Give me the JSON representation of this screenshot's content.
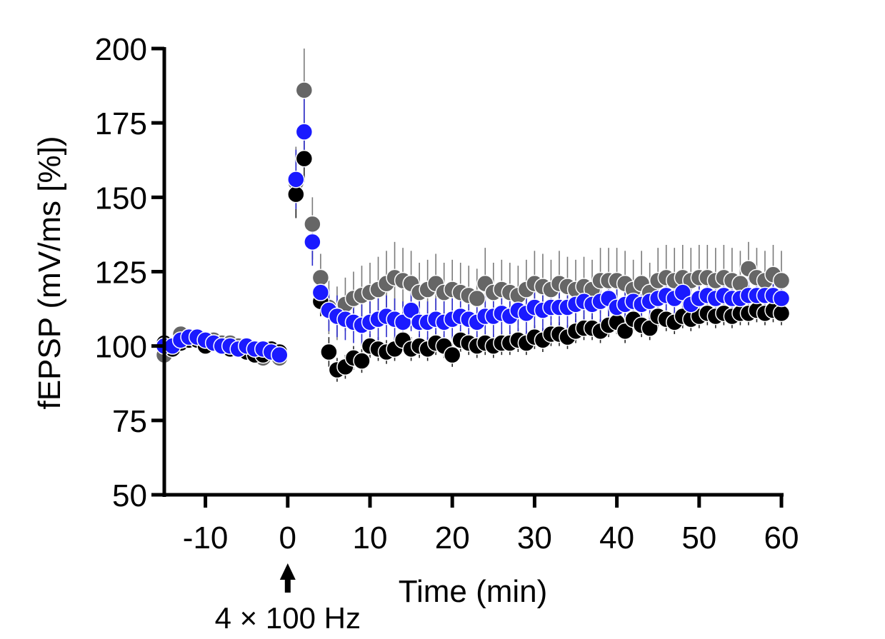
{
  "chart_data": {
    "type": "scatter",
    "title": "",
    "xlabel": "Time (min)",
    "ylabel": "fEPSP (mV/ms [%])",
    "xlim": [
      -15,
      60
    ],
    "ylim": [
      50,
      200
    ],
    "x_ticks": [
      -10,
      0,
      10,
      20,
      30,
      40,
      50,
      60
    ],
    "y_ticks": [
      50,
      75,
      100,
      125,
      150,
      175,
      200
    ],
    "x_tick_labels": [
      "-10",
      "0",
      "10",
      "20",
      "30",
      "40",
      "50",
      "60"
    ],
    "y_tick_labels": [
      "50",
      "75",
      "100",
      "125",
      "150",
      "175",
      "200"
    ],
    "annotation": "4 × 100 Hz",
    "annotation_x": 0,
    "grid": false,
    "legend": "none",
    "colors": {
      "gray": "#666666",
      "black": "#000000",
      "blue": "#1a1aff",
      "error_gray": "#7a7a7a",
      "error_blue": "#2a2acc"
    },
    "x": [
      -15,
      -14,
      -13,
      -12,
      -11,
      -10,
      -9,
      -8,
      -7,
      -6,
      -5,
      -4,
      -3,
      -2,
      -1,
      1,
      2,
      3,
      4,
      5,
      6,
      7,
      8,
      9,
      10,
      11,
      12,
      13,
      14,
      15,
      16,
      17,
      18,
      19,
      20,
      21,
      22,
      23,
      24,
      25,
      26,
      27,
      28,
      29,
      30,
      31,
      32,
      33,
      34,
      35,
      36,
      37,
      38,
      39,
      40,
      41,
      42,
      43,
      44,
      45,
      46,
      47,
      48,
      49,
      50,
      51,
      52,
      53,
      54,
      55,
      56,
      57,
      58,
      59,
      60
    ],
    "series": [
      {
        "color": "gray",
        "y": [
          97,
          100,
          104,
          103,
          102,
          101,
          102,
          101,
          101,
          100,
          100,
          99,
          96,
          98,
          96,
          155,
          186,
          141,
          123,
          113,
          111,
          114,
          116,
          117,
          118,
          119,
          121,
          123,
          122,
          121,
          118,
          119,
          121,
          118,
          119,
          118,
          117,
          116,
          121,
          118,
          119,
          118,
          117,
          119,
          121,
          120,
          119,
          121,
          120,
          119,
          120,
          119,
          122,
          122,
          122,
          121,
          119,
          121,
          118,
          122,
          123,
          122,
          123,
          122,
          123,
          123,
          122,
          123,
          122,
          121,
          126,
          123,
          122,
          124,
          122
        ],
        "err": [
          2,
          2,
          2,
          2,
          2,
          2,
          2,
          2,
          2,
          2,
          2,
          2,
          2,
          2,
          2,
          12,
          14,
          9,
          8,
          9,
          9,
          9,
          9,
          10,
          10,
          11,
          11,
          12,
          11,
          11,
          10,
          10,
          10,
          10,
          10,
          10,
          10,
          10,
          12,
          10,
          10,
          10,
          10,
          10,
          11,
          11,
          10,
          11,
          10,
          10,
          10,
          10,
          11,
          11,
          11,
          11,
          10,
          11,
          10,
          11,
          11,
          11,
          11,
          11,
          11,
          11,
          11,
          11,
          11,
          11,
          9,
          10,
          10,
          10,
          10
        ]
      },
      {
        "color": "black",
        "y": [
          101,
          99,
          101,
          102,
          102,
          100,
          101,
          100,
          99,
          99,
          98,
          97,
          97,
          99,
          98,
          151,
          163,
          135,
          115,
          98,
          92,
          93,
          96,
          95,
          100,
          99,
          98,
          99,
          102,
          99,
          100,
          99,
          101,
          100,
          97,
          102,
          101,
          100,
          101,
          100,
          101,
          101,
          102,
          101,
          103,
          102,
          104,
          104,
          103,
          105,
          106,
          106,
          105,
          107,
          108,
          105,
          109,
          107,
          106,
          110,
          109,
          108,
          110,
          109,
          110,
          111,
          110,
          111,
          110,
          111,
          111,
          112,
          111,
          112,
          111
        ],
        "err": [
          2,
          2,
          2,
          2,
          2,
          2,
          2,
          2,
          2,
          2,
          2,
          2,
          2,
          2,
          2,
          8,
          8,
          6,
          5,
          5,
          4,
          4,
          4,
          4,
          4,
          4,
          4,
          4,
          4,
          4,
          4,
          4,
          4,
          4,
          4,
          4,
          4,
          4,
          4,
          4,
          4,
          4,
          4,
          4,
          4,
          4,
          4,
          4,
          4,
          4,
          4,
          4,
          4,
          4,
          4,
          4,
          4,
          4,
          4,
          4,
          4,
          4,
          4,
          4,
          4,
          4,
          4,
          4,
          4,
          4,
          4,
          4,
          4,
          4,
          4
        ]
      },
      {
        "color": "blue",
        "y": [
          100,
          100,
          102,
          103,
          103,
          102,
          101,
          100,
          100,
          99,
          100,
          99,
          99,
          98,
          97,
          156,
          172,
          135,
          118,
          112,
          110,
          109,
          108,
          107,
          108,
          109,
          110,
          109,
          108,
          112,
          108,
          108,
          109,
          108,
          109,
          110,
          109,
          108,
          110,
          110,
          111,
          110,
          112,
          111,
          113,
          112,
          113,
          113,
          113,
          114,
          115,
          114,
          115,
          116,
          113,
          114,
          115,
          114,
          115,
          116,
          117,
          116,
          118,
          114,
          116,
          117,
          116,
          117,
          116,
          116,
          117,
          117,
          117,
          117,
          116
        ],
        "err": [
          2,
          2,
          2,
          2,
          2,
          2,
          2,
          2,
          2,
          2,
          2,
          2,
          2,
          2,
          2,
          10,
          12,
          8,
          6,
          7,
          7,
          7,
          7,
          7,
          7,
          7,
          7,
          7,
          7,
          7,
          7,
          7,
          7,
          7,
          7,
          7,
          7,
          7,
          7,
          7,
          7,
          7,
          7,
          7,
          7,
          7,
          7,
          7,
          7,
          7,
          7,
          7,
          7,
          7,
          7,
          7,
          7,
          7,
          7,
          7,
          7,
          7,
          7,
          7,
          7,
          7,
          7,
          7,
          7,
          7,
          7,
          7,
          7,
          7,
          7
        ]
      }
    ]
  }
}
